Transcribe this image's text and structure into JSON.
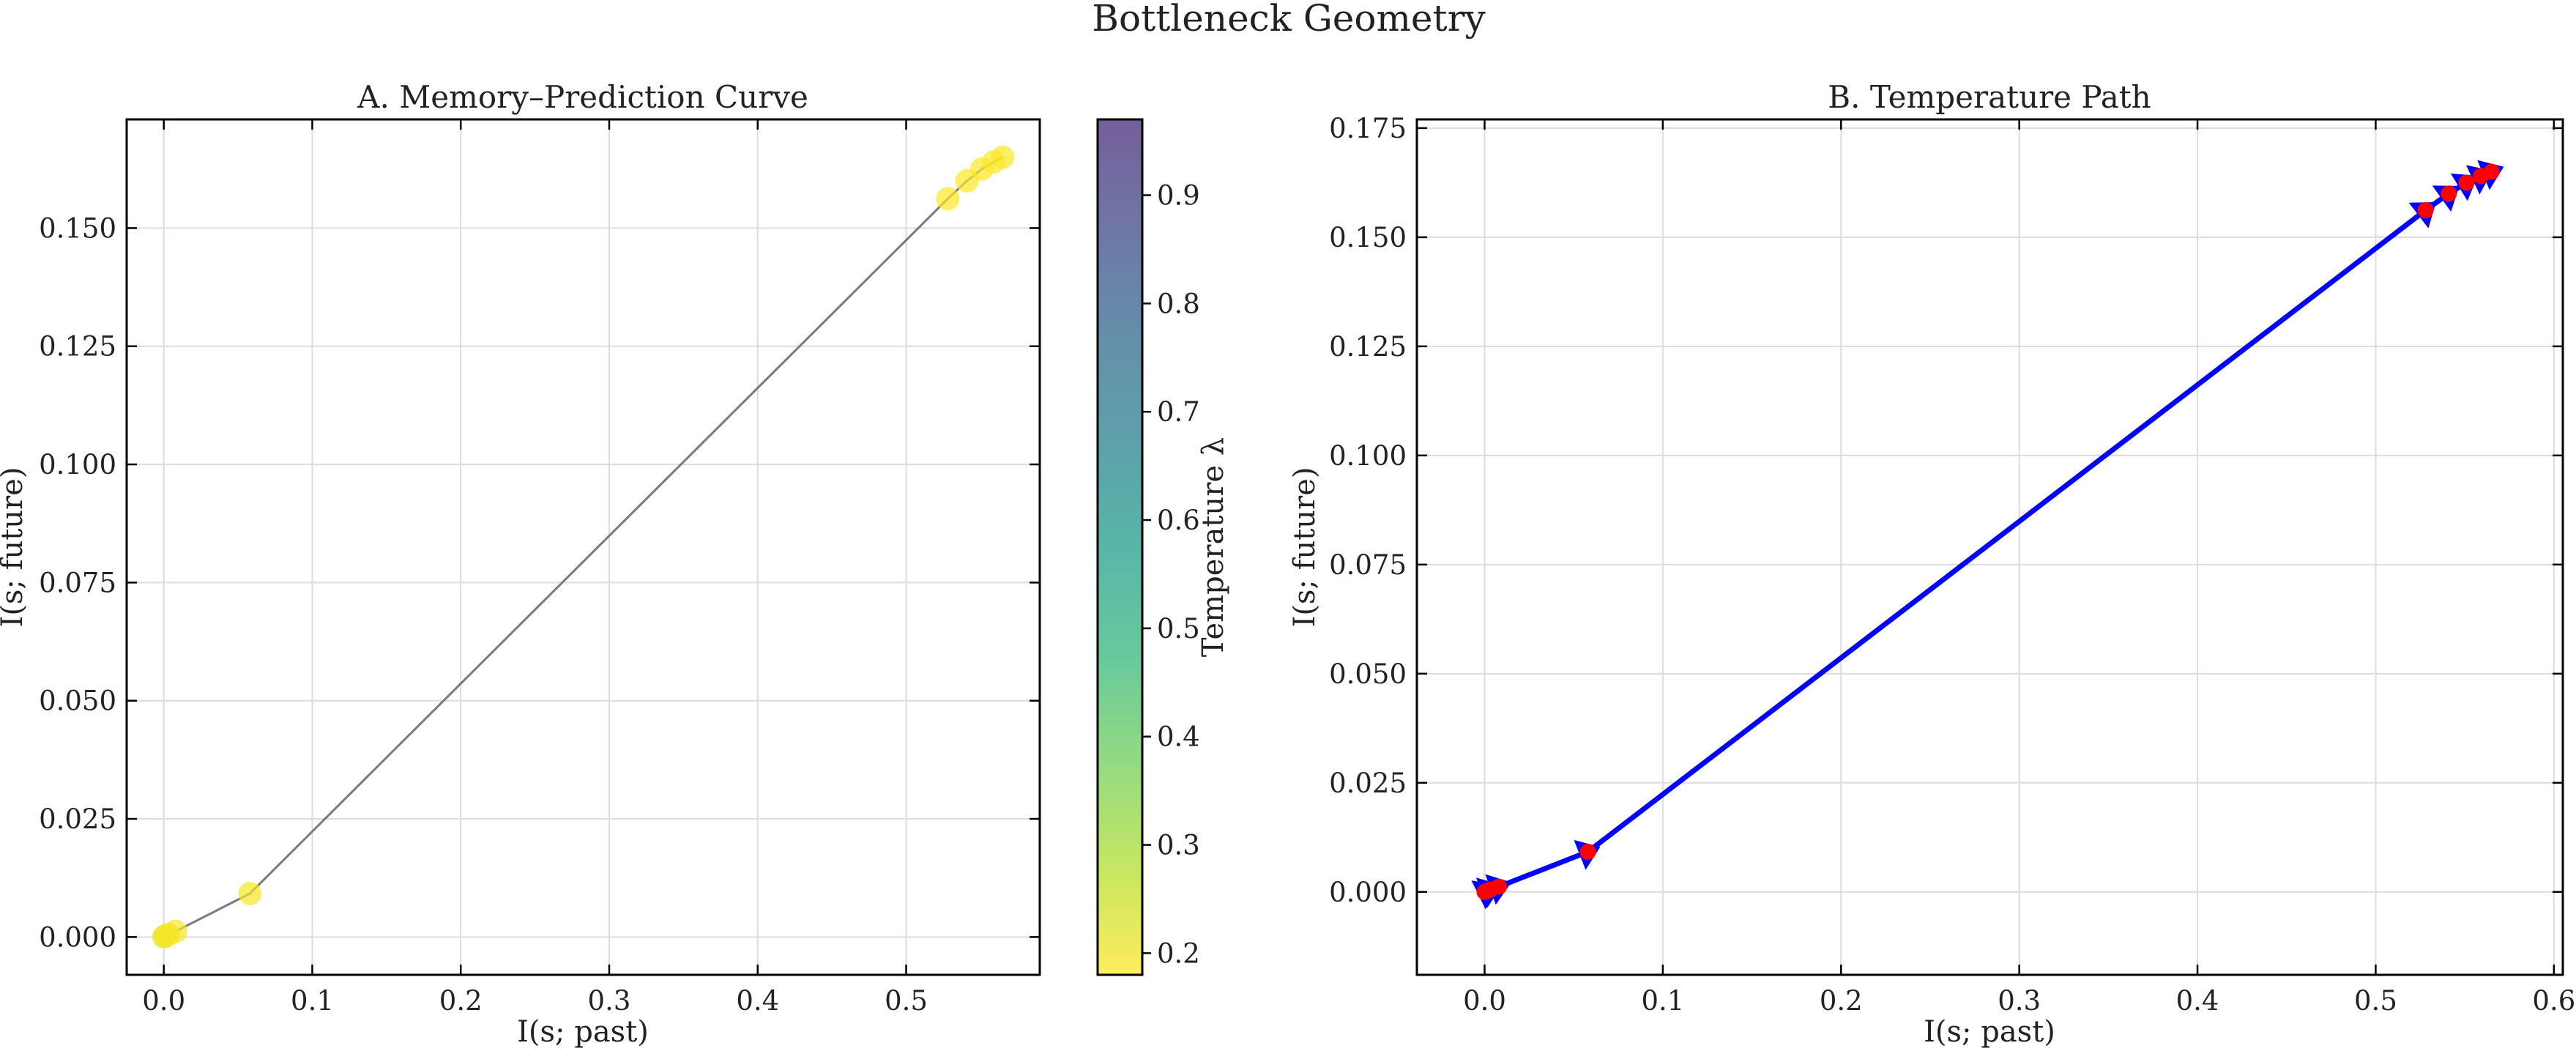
{
  "figure": {
    "title": "Bottleneck Geometry"
  },
  "chart_data": [
    {
      "type": "scatter",
      "title": "A. Memory–Prediction Curve",
      "xlabel": "I(s; past)",
      "ylabel": "I(s; future)",
      "xlim": [
        -0.025,
        0.59
      ],
      "ylim": [
        -0.008,
        0.173
      ],
      "xticks": [
        0.0,
        0.1,
        0.2,
        0.3,
        0.4,
        0.5
      ],
      "xtick_labels": [
        "0.0",
        "0.1",
        "0.2",
        "0.3",
        "0.4",
        "0.5"
      ],
      "yticks": [
        0.0,
        0.025,
        0.05,
        0.075,
        0.1,
        0.125,
        0.15
      ],
      "ytick_labels": [
        "0.000",
        "0.025",
        "0.050",
        "0.075",
        "0.100",
        "0.125",
        "0.150"
      ],
      "grid": true,
      "line_color": "#7a7a7a",
      "points": {
        "x": [
          0.0,
          0.001,
          0.003,
          0.008,
          0.058,
          0.528,
          0.541,
          0.551,
          0.559,
          0.565
        ],
        "y": [
          0.0,
          0.0002,
          0.0005,
          0.0012,
          0.0092,
          0.1562,
          0.16,
          0.1625,
          0.164,
          0.165
        ],
        "color": [
          0.2,
          0.2,
          0.19,
          0.19,
          0.19,
          0.18,
          0.18,
          0.18,
          0.18,
          0.18
        ]
      },
      "colorbar": {
        "label": "Temperature λ",
        "range": [
          0.18,
          0.97
        ],
        "colormap": "viridis_r",
        "ticks": [
          0.2,
          0.3,
          0.4,
          0.5,
          0.6,
          0.7,
          0.8,
          0.9
        ],
        "tick_labels": [
          "0.2",
          "0.3",
          "0.4",
          "0.5",
          "0.6",
          "0.7",
          "0.8",
          "0.9"
        ]
      }
    },
    {
      "type": "line",
      "title": "B. Temperature Path",
      "xlabel": "I(s; past)",
      "ylabel": "I(s; future)",
      "xlim": [
        -0.038,
        0.605
      ],
      "ylim": [
        -0.019,
        0.177
      ],
      "xticks": [
        0.0,
        0.1,
        0.2,
        0.3,
        0.4,
        0.5,
        0.6
      ],
      "xtick_labels": [
        "0.0",
        "0.1",
        "0.2",
        "0.3",
        "0.4",
        "0.5",
        "0.6"
      ],
      "yticks": [
        0.0,
        0.025,
        0.05,
        0.075,
        0.1,
        0.125,
        0.15,
        0.175
      ],
      "ytick_labels": [
        "0.000",
        "0.025",
        "0.050",
        "0.075",
        "0.100",
        "0.125",
        "0.150",
        "0.175"
      ],
      "grid": true,
      "arrow_color": "#0000ff",
      "point_color": "#ff0000",
      "points": {
        "x": [
          0.0,
          0.001,
          0.003,
          0.008,
          0.058,
          0.528,
          0.541,
          0.551,
          0.559,
          0.565
        ],
        "y": [
          0.0,
          0.0002,
          0.0005,
          0.0012,
          0.0092,
          0.1562,
          0.16,
          0.1625,
          0.164,
          0.165
        ]
      }
    }
  ]
}
